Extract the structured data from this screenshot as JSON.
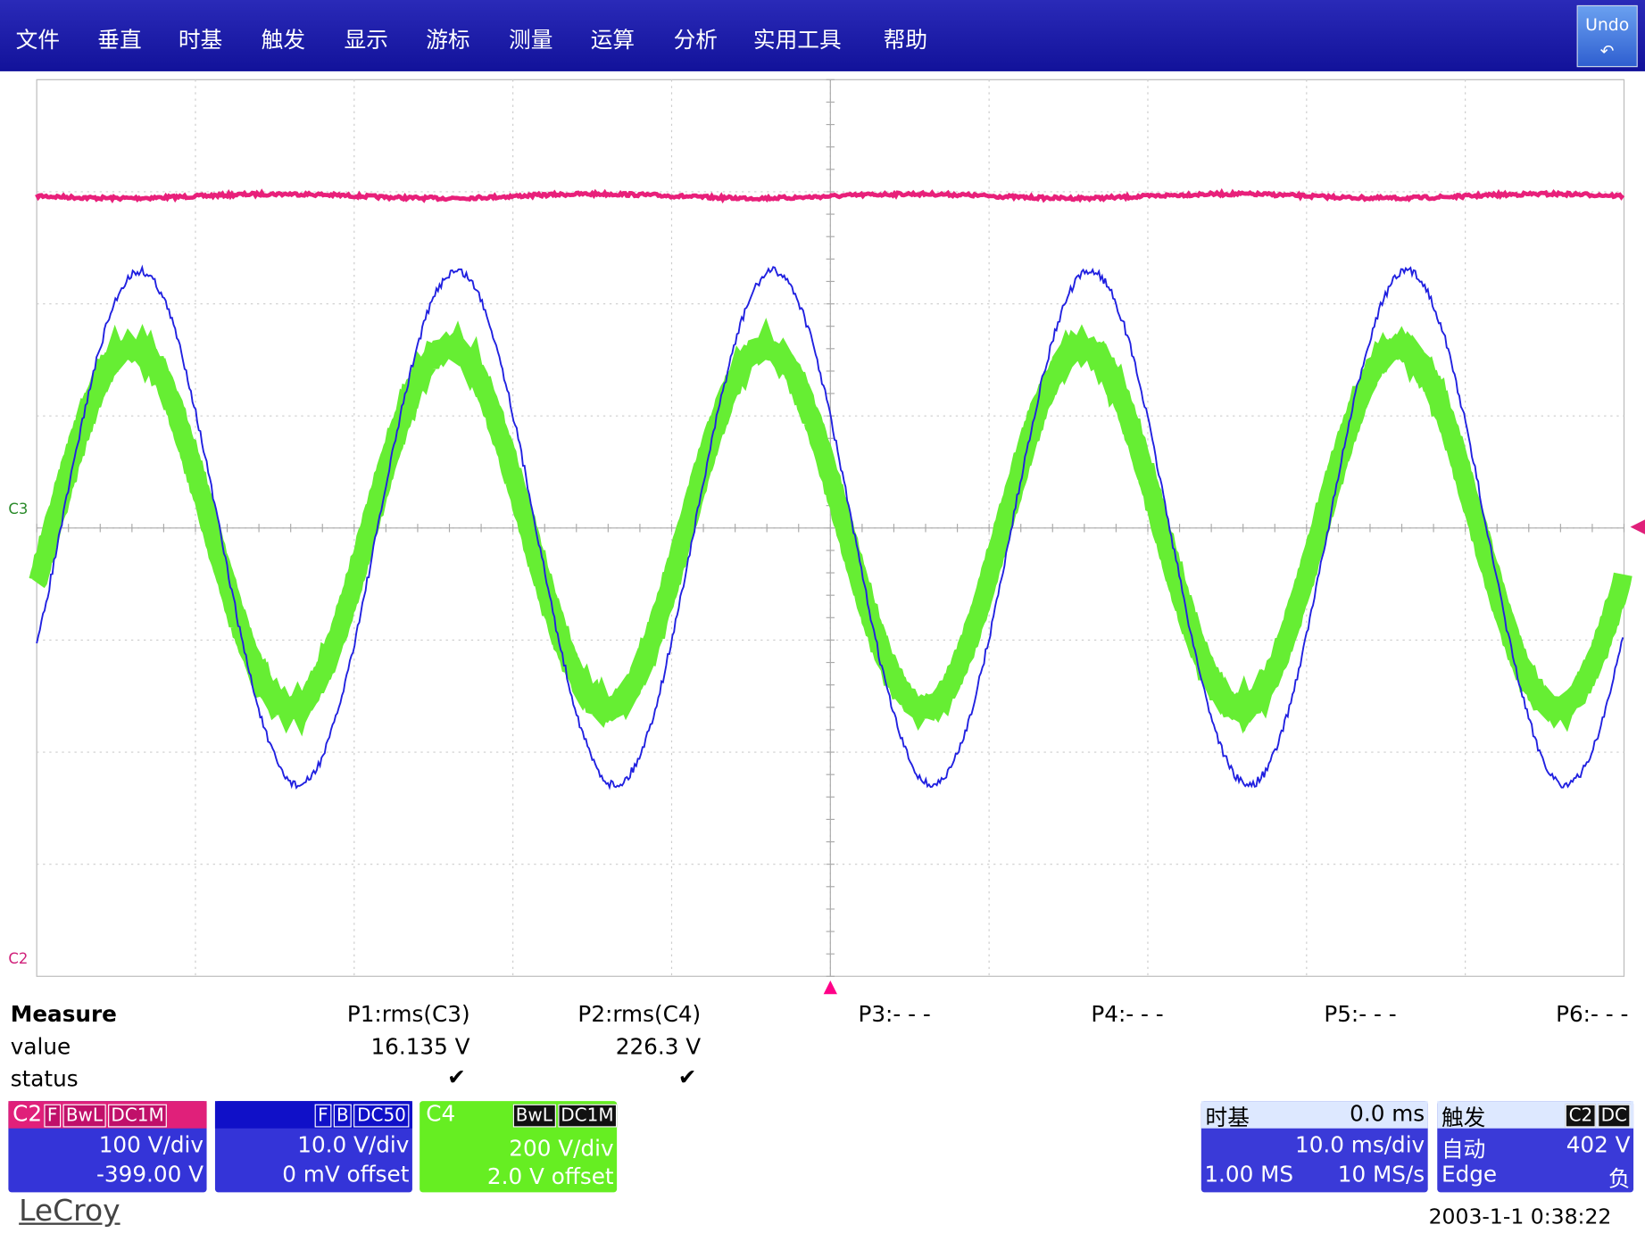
{
  "menu": {
    "items": [
      "文件",
      "垂直",
      "时基",
      "触发",
      "显示",
      "游标",
      "测量",
      "运算",
      "分析",
      "实用工具",
      "帮助"
    ],
    "undo": "Undo"
  },
  "markers": {
    "left_c3": "C3",
    "left_c2": "C2"
  },
  "measure": {
    "title": "Measure",
    "row_value": "value",
    "row_status": "status",
    "params": [
      "P1:rms(C3)",
      "P2:rms(C4)",
      "P3:- - -",
      "P4:- - -",
      "P5:- - -",
      "P6:- - -"
    ],
    "values": [
      "16.135 V",
      "226.3 V"
    ],
    "status": [
      "✔",
      "✔"
    ]
  },
  "channels": [
    {
      "name": "C2",
      "tags": [
        "F",
        "BwL",
        "DC1M"
      ],
      "scale": "100 V/div",
      "offset": "-399.00 V"
    },
    {
      "tags": [
        "F",
        "B",
        "DC50"
      ],
      "scale": "10.0 V/div",
      "offset": "0 mV offset"
    },
    {
      "name": "C4",
      "tags": [
        "BwL",
        "DC1M"
      ],
      "scale": "200 V/div",
      "offset": "2.0 V offset"
    }
  ],
  "timebase": {
    "title": "时基",
    "delay": "0.0 ms",
    "per_div": "10.0 ms/div",
    "samples": "1.00 MS",
    "rate": "10 MS/s"
  },
  "trigger": {
    "title": "触发",
    "tags": [
      "C2",
      "DC"
    ],
    "mode": "自动",
    "level": "402 V",
    "kind": "Edge",
    "slope": "负"
  },
  "footer": {
    "brand": "LeCroy",
    "timestamp": "2003-1-1 0:38:22"
  }
}
